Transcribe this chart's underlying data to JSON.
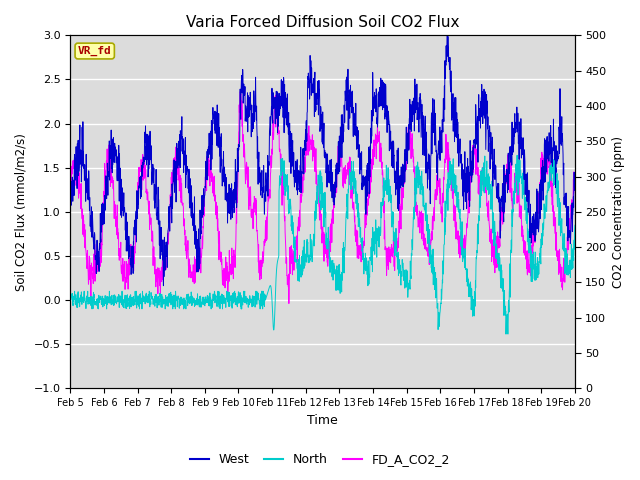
{
  "title": "Varia Forced Diffusion Soil CO2 Flux",
  "xlabel": "Time",
  "ylabel_left": "Soil CO2 Flux (mmol/m2/s)",
  "ylabel_right": "CO2 Concentration (ppm)",
  "annotation": "VR_fd",
  "ylim_left": [
    -1.0,
    3.0
  ],
  "ylim_right": [
    0,
    500
  ],
  "xtick_labels": [
    "Feb 5",
    "Feb 6",
    "Feb 7",
    "Feb 8",
    "Feb 9",
    "Feb 10",
    "Feb 11",
    "Feb 12",
    "Feb 13",
    "Feb 14",
    "Feb 15",
    "Feb 16",
    "Feb 17",
    "Feb 18",
    "Feb 19",
    "Feb 20"
  ],
  "legend_labels": [
    "West",
    "North",
    "FD_A_CO2_2"
  ],
  "colors": {
    "West": "#0000CC",
    "North": "#00CCCC",
    "FD_A_CO2_2": "#FF00FF"
  },
  "background_color": "#DCDCDC",
  "annotation_bg": "#FFFFAA",
  "annotation_border": "#AAAA00",
  "annotation_text_color": "#AA0000"
}
